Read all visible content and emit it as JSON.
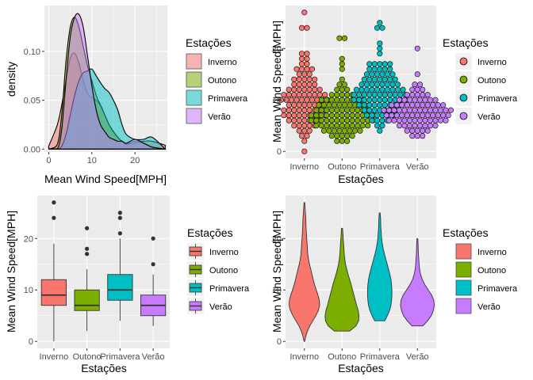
{
  "colors": {
    "Inverno": "#F8766D",
    "Outono": "#7CAE00",
    "Primavera": "#00BFC4",
    "Verao": "#C77CFF",
    "panel_bg": "#EBEBEB",
    "grid_major": "#FFFFFF"
  },
  "legend": {
    "title": "Estações",
    "labels": [
      "Inverno",
      "Outono",
      "Primavera",
      "Verão"
    ]
  },
  "chart_data": [
    {
      "id": "density",
      "type": "area",
      "xlabel": "Mean Wind Speed[MPH]",
      "ylabel": "density",
      "xlim": [
        -1,
        27.5
      ],
      "ylim": [
        -0.003,
        0.147
      ],
      "xticks": [
        0,
        10,
        20
      ],
      "yticks": [
        0.0,
        0.05,
        0.1
      ],
      "ytick_labels": [
        "0.00",
        "0.05",
        "0.10"
      ],
      "xtick_labels": [
        "0",
        "10",
        "20"
      ],
      "x": [
        0,
        2,
        3,
        4,
        5,
        6,
        7,
        8,
        9,
        10,
        11,
        12,
        13,
        14,
        15,
        16,
        17,
        18,
        20,
        22,
        24,
        27
      ],
      "series": [
        {
          "name": "Inverno",
          "values": [
            0.003,
            0.025,
            0.045,
            0.07,
            0.093,
            0.098,
            0.088,
            0.07,
            0.057,
            0.053,
            0.05,
            0.045,
            0.035,
            0.025,
            0.018,
            0.012,
            0.008,
            0.005,
            0.006,
            0.008,
            0.008,
            0.004
          ]
        },
        {
          "name": "Outono",
          "values": [
            0.0,
            0.005,
            0.035,
            0.09,
            0.125,
            0.135,
            0.125,
            0.105,
            0.085,
            0.07,
            0.055,
            0.045,
            0.035,
            0.025,
            0.018,
            0.012,
            0.008,
            0.005,
            0.008,
            0.006,
            0.002,
            0.0
          ]
        },
        {
          "name": "Primavera",
          "values": [
            0.0,
            0.0,
            0.003,
            0.015,
            0.035,
            0.055,
            0.07,
            0.078,
            0.08,
            0.082,
            0.075,
            0.068,
            0.062,
            0.058,
            0.05,
            0.04,
            0.025,
            0.015,
            0.01,
            0.01,
            0.012,
            0.0
          ]
        },
        {
          "name": "Verão",
          "values": [
            0.0,
            0.0,
            0.02,
            0.07,
            0.115,
            0.135,
            0.138,
            0.125,
            0.095,
            0.065,
            0.04,
            0.025,
            0.018,
            0.012,
            0.01,
            0.008,
            0.008,
            0.006,
            0.01,
            0.006,
            0.002,
            0.0
          ]
        }
      ]
    },
    {
      "id": "dotplot",
      "type": "scatter",
      "xlabel": "Estações",
      "ylabel": "Mean Wind Speed[MPH]",
      "categories": [
        "Inverno",
        "Outono",
        "Primavera",
        "Verão"
      ],
      "ylim": [
        -1.35,
        28.35
      ],
      "yticks": [
        0,
        10,
        20
      ],
      "binwidth": 1,
      "counts": [
        {
          "0": 1,
          "2": 1,
          "3": 2,
          "4": 3,
          "5": 5,
          "6": 7,
          "7": 9,
          "8": 9,
          "9": 7,
          "10": 10,
          "11": 9,
          "12": 7,
          "13": 5,
          "14": 5,
          "15": 3,
          "16": 4,
          "17": 2,
          "18": 2,
          "19": 2,
          "24": 2,
          "27": 1
        },
        {
          "2": 3,
          "3": 5,
          "4": 8,
          "5": 11,
          "6": 13,
          "7": 13,
          "8": 11,
          "9": 10,
          "10": 9,
          "11": 5,
          "12": 3,
          "13": 2,
          "14": 1,
          "16": 1,
          "17": 1,
          "18": 1,
          "22": 2
        },
        {
          "4": 1,
          "5": 2,
          "6": 4,
          "7": 6,
          "8": 7,
          "9": 9,
          "10": 11,
          "11": 11,
          "12": 10,
          "13": 8,
          "14": 7,
          "15": 6,
          "16": 5,
          "17": 5,
          "19": 1,
          "20": 1,
          "21": 1,
          "24": 2,
          "25": 1
        },
        {
          "3": 3,
          "4": 5,
          "5": 8,
          "6": 12,
          "7": 13,
          "8": 14,
          "9": 11,
          "10": 8,
          "11": 5,
          "12": 3,
          "13": 2,
          "15": 1,
          "20": 1
        }
      ]
    },
    {
      "id": "boxplot",
      "type": "box",
      "xlabel": "Estações",
      "ylabel": "Mean Wind Speed[MPH]",
      "categories": [
        "Inverno",
        "Outono",
        "Primavera",
        "Verão"
      ],
      "ylim": [
        -1.35,
        28.35
      ],
      "yticks": [
        0,
        10,
        20
      ],
      "boxes": [
        {
          "min": 0,
          "q1": 7,
          "median": 9,
          "q3": 12,
          "max": 19,
          "outliers": [
            24,
            27
          ]
        },
        {
          "min": 2,
          "q1": 6,
          "median": 7,
          "q3": 10,
          "max": 14,
          "outliers": [
            17,
            18,
            22
          ]
        },
        {
          "min": 4,
          "q1": 8,
          "median": 10,
          "q3": 13,
          "max": 20,
          "outliers": [
            21,
            24,
            25
          ]
        },
        {
          "min": 3,
          "q1": 5,
          "median": 7,
          "q3": 9,
          "max": 13,
          "outliers": [
            15,
            20
          ]
        }
      ]
    },
    {
      "id": "violin",
      "type": "violin",
      "xlabel": "Estações",
      "ylabel": "Mean Wind Speed[MPH]",
      "categories": [
        "Inverno",
        "Outono",
        "Primavera",
        "Verão"
      ],
      "ylim": [
        -1.35,
        28.35
      ],
      "yticks": [
        0,
        10,
        20
      ],
      "profiles": [
        {
          "min": 0,
          "max": 27,
          "y": [
            0,
            1,
            2,
            3,
            4,
            5,
            6,
            7,
            8,
            9,
            10,
            11,
            12,
            13,
            14,
            15,
            16,
            17,
            18,
            19,
            20,
            21,
            22,
            23,
            24,
            25,
            26,
            27
          ],
          "w": [
            0.02,
            0.08,
            0.18,
            0.32,
            0.5,
            0.68,
            0.82,
            0.9,
            0.88,
            0.8,
            0.7,
            0.6,
            0.52,
            0.45,
            0.38,
            0.3,
            0.24,
            0.2,
            0.18,
            0.16,
            0.14,
            0.12,
            0.1,
            0.09,
            0.08,
            0.06,
            0.04,
            0.02
          ]
        },
        {
          "min": 2,
          "max": 22,
          "y": [
            2,
            3,
            4,
            5,
            6,
            7,
            8,
            9,
            10,
            11,
            12,
            13,
            14,
            15,
            16,
            17,
            18,
            19,
            20,
            21,
            22
          ],
          "w": [
            0.45,
            0.82,
            0.98,
            1.0,
            0.95,
            0.86,
            0.78,
            0.7,
            0.62,
            0.54,
            0.45,
            0.36,
            0.28,
            0.21,
            0.16,
            0.13,
            0.11,
            0.09,
            0.07,
            0.05,
            0.03
          ]
        },
        {
          "min": 4,
          "max": 25,
          "y": [
            4,
            5,
            6,
            7,
            8,
            9,
            10,
            11,
            12,
            13,
            14,
            15,
            16,
            17,
            18,
            19,
            20,
            21,
            22,
            23,
            24,
            25
          ],
          "w": [
            0.3,
            0.45,
            0.58,
            0.66,
            0.7,
            0.72,
            0.72,
            0.7,
            0.66,
            0.6,
            0.52,
            0.44,
            0.36,
            0.28,
            0.21,
            0.15,
            0.11,
            0.09,
            0.07,
            0.06,
            0.05,
            0.02
          ]
        },
        {
          "min": 3,
          "max": 20,
          "y": [
            3,
            4,
            5,
            6,
            7,
            8,
            9,
            10,
            11,
            12,
            13,
            14,
            15,
            16,
            17,
            18,
            19,
            20
          ],
          "w": [
            0.32,
            0.6,
            0.82,
            0.94,
            1.0,
            0.96,
            0.84,
            0.64,
            0.44,
            0.29,
            0.19,
            0.13,
            0.1,
            0.08,
            0.06,
            0.05,
            0.04,
            0.02
          ]
        }
      ]
    }
  ]
}
